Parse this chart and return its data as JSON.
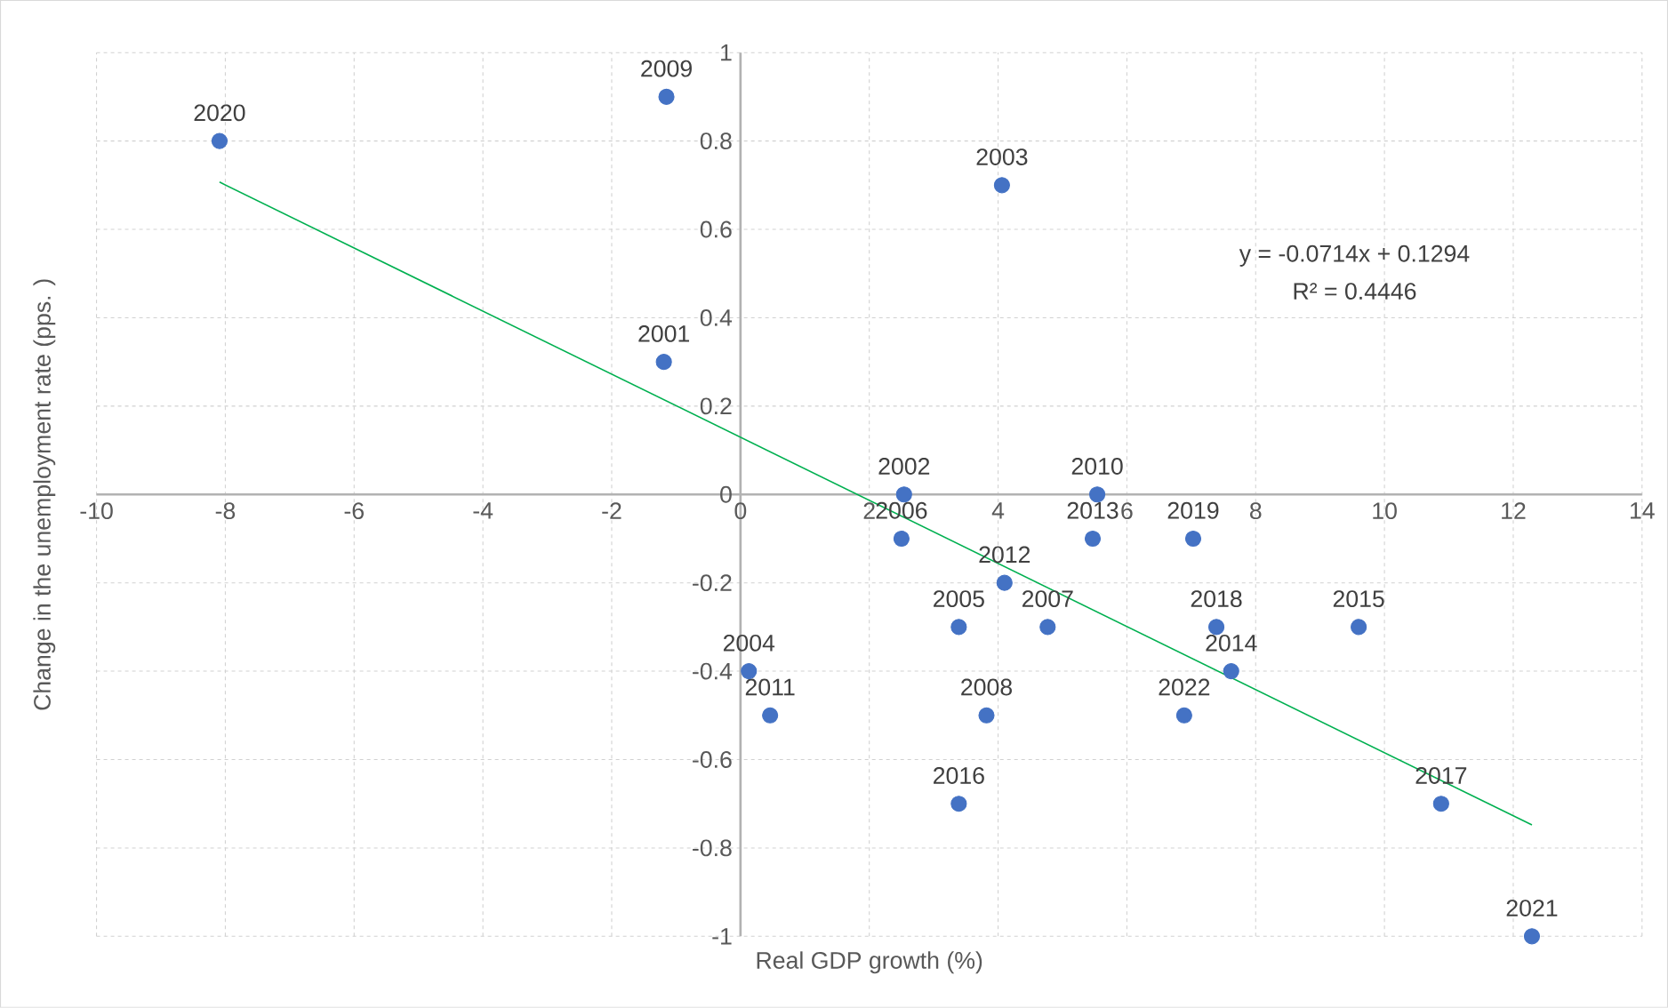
{
  "chart_data": {
    "type": "scatter",
    "xlabel": "Real GDP growth (%)",
    "ylabel": "Change in the unemployment rate (pps. )",
    "xlim": [
      -10,
      14
    ],
    "xticks": [
      -10,
      -8,
      -6,
      -4,
      -2,
      0,
      2,
      4,
      6,
      8,
      10,
      12,
      14
    ],
    "ylim": [
      -1,
      1
    ],
    "yticks": [
      -1,
      -0.8,
      -0.6,
      -0.4,
      -0.2,
      0,
      0.2,
      0.4,
      0.6,
      0.8,
      1
    ],
    "grid": true,
    "series": [
      {
        "color": "#4472c4",
        "x": [
          -1.19,
          2.54,
          4.06,
          0.13,
          3.39,
          2.5,
          4.77,
          3.82,
          -1.15,
          5.54,
          0.46,
          4.1,
          5.47,
          7.62,
          9.6,
          3.39,
          10.88,
          7.39,
          7.03,
          -8.09,
          12.29,
          6.89
        ],
        "values": [
          0.3,
          0,
          0.7,
          -0.4,
          -0.3,
          -0.1,
          -0.3,
          -0.5,
          0.9,
          0,
          -0.5,
          -0.2,
          -0.1,
          -0.4,
          -0.3,
          -0.7,
          -0.7,
          -0.3,
          -0.1,
          0.8,
          -1,
          -0.5
        ]
      },
      {
        "type": "line",
        "color": "#00b050",
        "x": [
          -8.09,
          12.29
        ],
        "values": [
          0.707,
          -0.748
        ]
      }
    ],
    "annotations": [
      {
        "text": "2001",
        "x": -1.19,
        "y": 0.3
      },
      {
        "text": "2002",
        "x": 2.54,
        "y": 0
      },
      {
        "text": "2003",
        "x": 4.06,
        "y": 0.7
      },
      {
        "text": "2004",
        "x": 0.13,
        "y": -0.4
      },
      {
        "text": "2005",
        "x": 3.39,
        "y": -0.3
      },
      {
        "text": "2006",
        "x": 2.5,
        "y": -0.1
      },
      {
        "text": "2007",
        "x": 4.77,
        "y": -0.3
      },
      {
        "text": "2008",
        "x": 3.82,
        "y": -0.5
      },
      {
        "text": "2009",
        "x": -1.15,
        "y": 0.9
      },
      {
        "text": "2010",
        "x": 5.54,
        "y": 0
      },
      {
        "text": "2011",
        "x": 0.46,
        "y": -0.5
      },
      {
        "text": "2012",
        "x": 4.1,
        "y": -0.2
      },
      {
        "text": "2013",
        "x": 5.47,
        "y": -0.1
      },
      {
        "text": "2014",
        "x": 7.62,
        "y": -0.4
      },
      {
        "text": "2015",
        "x": 9.6,
        "y": -0.3
      },
      {
        "text": "2016",
        "x": 3.39,
        "y": -0.7
      },
      {
        "text": "2017",
        "x": 10.88,
        "y": -0.7
      },
      {
        "text": "2018",
        "x": 7.39,
        "y": -0.3
      },
      {
        "text": "2019",
        "x": 7.03,
        "y": -0.1
      },
      {
        "text": "2020",
        "x": -8.09,
        "y": 0.8
      },
      {
        "text": "2021",
        "x": 12.29,
        "y": -1
      },
      {
        "text": "2022",
        "x": 6.89,
        "y": -0.5
      },
      "y = -0.0714x + 0.1294",
      "R² = 0.4446"
    ]
  }
}
